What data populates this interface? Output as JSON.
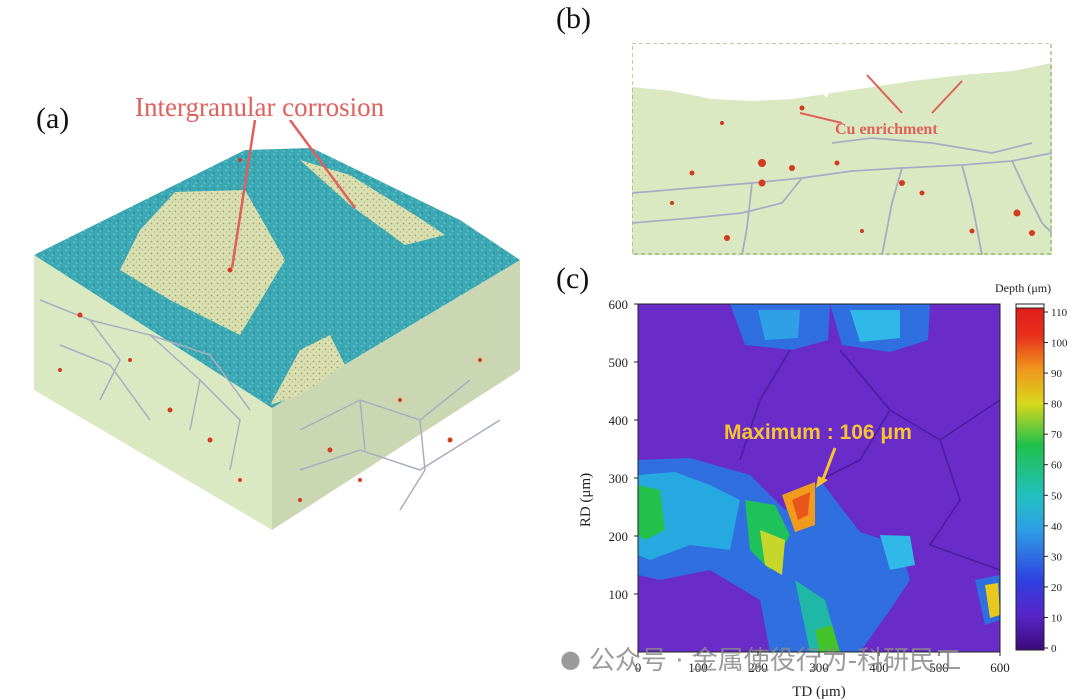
{
  "panels": {
    "a": {
      "label": "(a)",
      "annotation": "Intergranular corrosion"
    },
    "b": {
      "label": "(b)",
      "annotation": "Cu enrichment"
    },
    "c": {
      "label": "(c)",
      "annotation": "Maximum : 106 μm",
      "xlabel": "TD (μm)",
      "ylabel": "RD (μm)",
      "xticks": [
        "0",
        "100",
        "200",
        "300",
        "400",
        "500",
        "600"
      ],
      "yticks": [
        "100",
        "200",
        "300",
        "400",
        "500",
        "600"
      ],
      "colorbar_title": "Depth (μm)",
      "colorbar_ticks": [
        "0",
        "10",
        "20",
        "30",
        "40",
        "50",
        "60",
        "70",
        "80",
        "90",
        "100",
        "110"
      ]
    }
  },
  "watermark": "公众号 · 金属使役行为-科研民工",
  "colors": {
    "annotation": "#e0605c",
    "max_label": "#f6c431",
    "map_background": "#6a2cc9"
  }
}
